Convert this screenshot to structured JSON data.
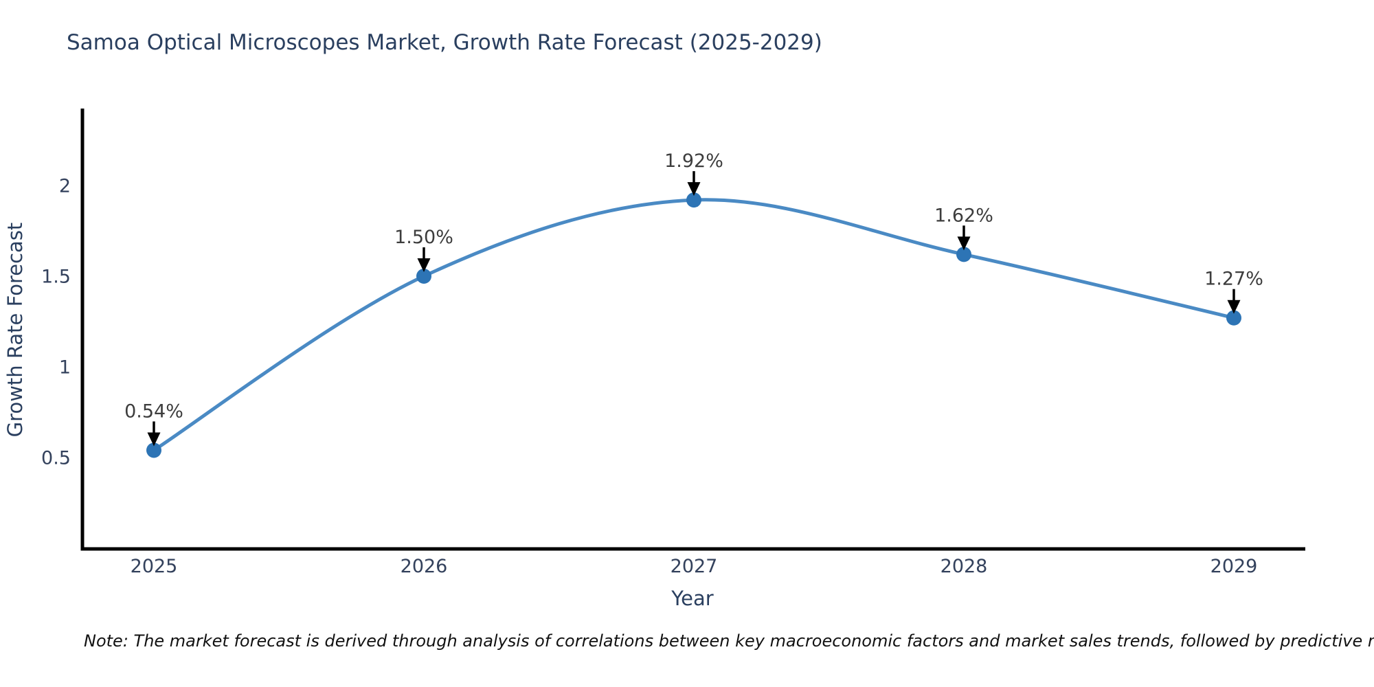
{
  "chart_data": {
    "type": "line",
    "title": "Samoa Optical Microscopes Market, Growth Rate Forecast (2025-2029)",
    "xlabel": "Year",
    "ylabel": "Growth Rate Forecast",
    "categories": [
      "2025",
      "2026",
      "2027",
      "2028",
      "2029"
    ],
    "values": [
      0.54,
      1.5,
      1.92,
      1.62,
      1.27
    ],
    "point_labels": [
      "0.54%",
      "1.50%",
      "1.92%",
      "1.62%",
      "1.27%"
    ],
    "yticks": {
      "values": [
        2,
        1.5,
        1,
        0.5
      ],
      "labels": [
        "2",
        "1.5",
        "1",
        "0.5"
      ]
    },
    "ylim": [
      0,
      2.42
    ],
    "grid": false,
    "legend": "none",
    "line_shape": "spline",
    "annotation_arrows": true
  },
  "note": "Note: The market forecast is derived through analysis of correlations between key macroeconomic factors and market sales trends, followed by predictive modeling to project future sales",
  "colors": {
    "background": "#ffffff",
    "title_text": "#2a3f5f",
    "axis_title_text": "#2a3f5f",
    "tick_text": "#33415c",
    "annotation_text": "#3d3d3d",
    "line": "#4a8ac4",
    "marker": "#2d74b5",
    "axis_line": "#000000",
    "arrow": "#000000",
    "note_text": "#111111"
  }
}
